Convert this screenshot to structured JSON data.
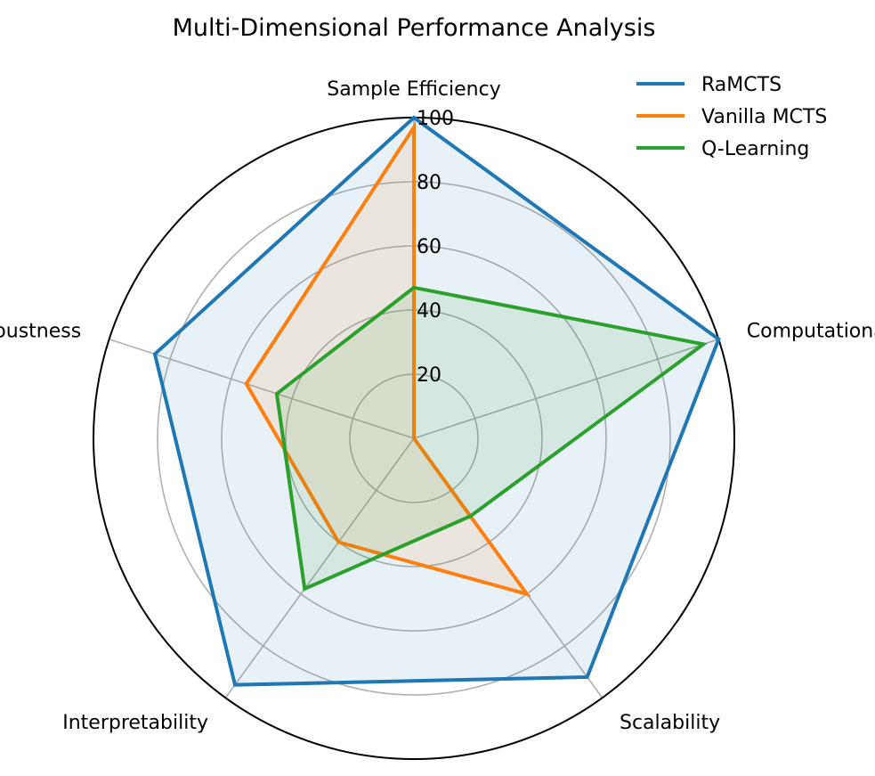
{
  "chart_data": {
    "type": "radar",
    "title": "Multi-Dimensional Performance Analysis",
    "axes": [
      "Sample Efficiency",
      "Computational Cost",
      "Scalability",
      "Interpretability",
      "Robustness"
    ],
    "rlim": [
      0,
      100
    ],
    "rticks": [
      20,
      40,
      60,
      80,
      100
    ],
    "grid": true,
    "legend_position": "top-right",
    "series": [
      {
        "name": "RaMCTS",
        "color": "#1f77b4",
        "values": [
          100,
          100,
          92,
          95,
          85
        ]
      },
      {
        "name": "Vanilla MCTS",
        "color": "#ff7f0e",
        "values": [
          97,
          0,
          60,
          40,
          55
        ]
      },
      {
        "name": "Q-Learning",
        "color": "#2ca02c",
        "values": [
          47,
          95,
          30,
          58,
          45
        ]
      }
    ]
  }
}
